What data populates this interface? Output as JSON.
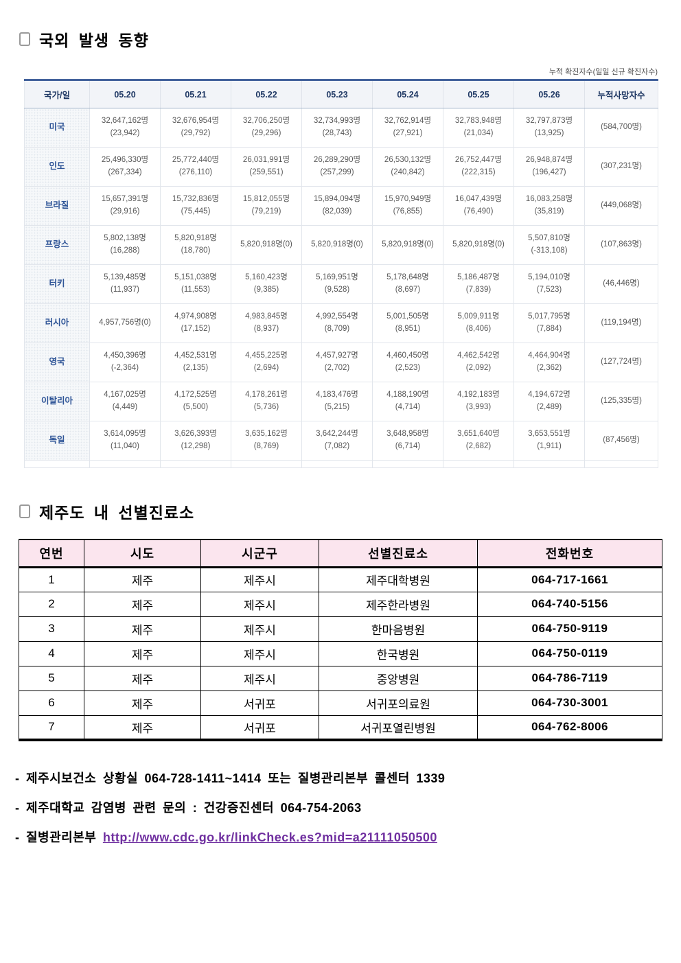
{
  "colors": {
    "table_top_border": "#44639c",
    "table_header_bg": "#f2f4f8",
    "table_header_text": "#1f3864",
    "country_text": "#2f5597",
    "cell_text": "#595959",
    "clinic_header_bg": "#fbe5ee",
    "clinic_border": "#000000",
    "link_color": "#7030a0"
  },
  "overseas": {
    "title": "국외 발생 동향",
    "note": "누적 확진자수(일일 신규 확진자수)",
    "table": {
      "columns": [
        "국가/일",
        "05.20",
        "05.21",
        "05.22",
        "05.23",
        "05.24",
        "05.25",
        "05.26",
        "누적사망자수"
      ],
      "rows": [
        {
          "country": "미국",
          "cells": [
            [
              "32,647,162명",
              "(23,942)"
            ],
            [
              "32,676,954명",
              "(29,792)"
            ],
            [
              "32,706,250명",
              "(29,296)"
            ],
            [
              "32,734,993명",
              "(28,743)"
            ],
            [
              "32,762,914명",
              "(27,921)"
            ],
            [
              "32,783,948명",
              "(21,034)"
            ],
            [
              "32,797,873명",
              "(13,925)"
            ]
          ],
          "deaths": "(584,700명)"
        },
        {
          "country": "인도",
          "cells": [
            [
              "25,496,330명",
              "(267,334)"
            ],
            [
              "25,772,440명",
              "(276,110)"
            ],
            [
              "26,031,991명",
              "(259,551)"
            ],
            [
              "26,289,290명",
              "(257,299)"
            ],
            [
              "26,530,132명",
              "(240,842)"
            ],
            [
              "26,752,447명",
              "(222,315)"
            ],
            [
              "26,948,874명",
              "(196,427)"
            ]
          ],
          "deaths": "(307,231명)"
        },
        {
          "country": "브라질",
          "cells": [
            [
              "15,657,391명",
              "(29,916)"
            ],
            [
              "15,732,836명",
              "(75,445)"
            ],
            [
              "15,812,055명",
              "(79,219)"
            ],
            [
              "15,894,094명",
              "(82,039)"
            ],
            [
              "15,970,949명",
              "(76,855)"
            ],
            [
              "16,047,439명",
              "(76,490)"
            ],
            [
              "16,083,258명",
              "(35,819)"
            ]
          ],
          "deaths": "(449,068명)"
        },
        {
          "country": "프랑스",
          "cells": [
            [
              "5,802,138명",
              "(16,288)"
            ],
            [
              "5,820,918명",
              "(18,780)"
            ],
            [
              "5,820,918명(0)",
              ""
            ],
            [
              "5,820,918명(0)",
              ""
            ],
            [
              "5,820,918명(0)",
              ""
            ],
            [
              "5,820,918명(0)",
              ""
            ],
            [
              "5,507,810명",
              "(-313,108)"
            ]
          ],
          "deaths": "(107,863명)"
        },
        {
          "country": "터키",
          "cells": [
            [
              "5,139,485명",
              "(11,937)"
            ],
            [
              "5,151,038명",
              "(11,553)"
            ],
            [
              "5,160,423명",
              "(9,385)"
            ],
            [
              "5,169,951명",
              "(9,528)"
            ],
            [
              "5,178,648명",
              "(8,697)"
            ],
            [
              "5,186,487명",
              "(7,839)"
            ],
            [
              "5,194,010명",
              "(7,523)"
            ]
          ],
          "deaths": "(46,446명)"
        },
        {
          "country": "러시아",
          "cells": [
            [
              "4,957,756명(0)",
              ""
            ],
            [
              "4,974,908명",
              "(17,152)"
            ],
            [
              "4,983,845명",
              "(8,937)"
            ],
            [
              "4,992,554명",
              "(8,709)"
            ],
            [
              "5,001,505명",
              "(8,951)"
            ],
            [
              "5,009,911명",
              "(8,406)"
            ],
            [
              "5,017,795명",
              "(7,884)"
            ]
          ],
          "deaths": "(119,194명)"
        },
        {
          "country": "영국",
          "cells": [
            [
              "4,450,396명",
              "(-2,364)"
            ],
            [
              "4,452,531명",
              "(2,135)"
            ],
            [
              "4,455,225명",
              "(2,694)"
            ],
            [
              "4,457,927명",
              "(2,702)"
            ],
            [
              "4,460,450명",
              "(2,523)"
            ],
            [
              "4,462,542명",
              "(2,092)"
            ],
            [
              "4,464,904명",
              "(2,362)"
            ]
          ],
          "deaths": "(127,724명)"
        },
        {
          "country": "이탈리아",
          "cells": [
            [
              "4,167,025명",
              "(4,449)"
            ],
            [
              "4,172,525명",
              "(5,500)"
            ],
            [
              "4,178,261명",
              "(5,736)"
            ],
            [
              "4,183,476명",
              "(5,215)"
            ],
            [
              "4,188,190명",
              "(4,714)"
            ],
            [
              "4,192,183명",
              "(3,993)"
            ],
            [
              "4,194,672명",
              "(2,489)"
            ]
          ],
          "deaths": "(125,335명)"
        },
        {
          "country": "독일",
          "cells": [
            [
              "3,614,095명",
              "(11,040)"
            ],
            [
              "3,626,393명",
              "(12,298)"
            ],
            [
              "3,635,162명",
              "(8,769)"
            ],
            [
              "3,642,244명",
              "(7,082)"
            ],
            [
              "3,648,958명",
              "(6,714)"
            ],
            [
              "3,651,640명",
              "(2,682)"
            ],
            [
              "3,653,551명",
              "(1,911)"
            ]
          ],
          "deaths": "(87,456명)"
        }
      ]
    }
  },
  "clinics": {
    "title": "제주도 내 선별진료소",
    "table": {
      "columns": [
        "연번",
        "시도",
        "시군구",
        "선별진료소",
        "전화번호"
      ],
      "rows": [
        [
          "1",
          "제주",
          "제주시",
          "제주대학병원",
          "064-717-1661"
        ],
        [
          "2",
          "제주",
          "제주시",
          "제주한라병원",
          "064-740-5156"
        ],
        [
          "3",
          "제주",
          "제주시",
          "한마음병원",
          "064-750-9119"
        ],
        [
          "4",
          "제주",
          "제주시",
          "한국병원",
          "064-750-0119"
        ],
        [
          "5",
          "제주",
          "제주시",
          "중앙병원",
          "064-786-7119"
        ],
        [
          "6",
          "제주",
          "서귀포",
          "서귀포의료원",
          "064-730-3001"
        ],
        [
          "7",
          "제주",
          "서귀포",
          "서귀포열린병원",
          "064-762-8006"
        ]
      ]
    }
  },
  "footer": {
    "lines": [
      {
        "text": "- 제주시보건소 상황실 064-728-1411~1414 또는 질병관리본부 콜센터 1339"
      },
      {
        "text": "- 제주대학교 감염병 관련 문의 : 건강증진센터 064-754-2063"
      },
      {
        "text": "- 질병관리본부 ",
        "link": "http://www.cdc.go.kr/linkCheck.es?mid=a21111050500"
      }
    ]
  }
}
